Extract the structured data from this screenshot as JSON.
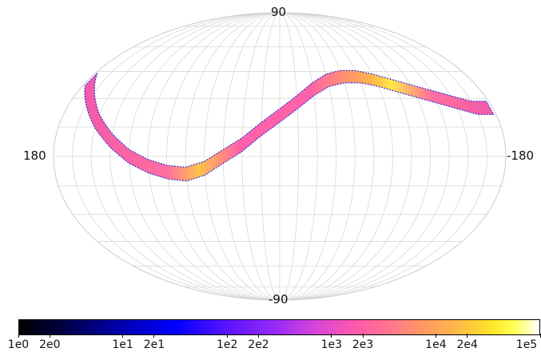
{
  "chart_data": {
    "type": "heatmap",
    "projection": "mollweide",
    "coordinate_labels": {
      "top": "90",
      "bottom": "-90",
      "left": "180",
      "right": "-180"
    },
    "graticule": true,
    "lon_spacing_deg": 15,
    "lat_spacing_deg": 15,
    "band_center_lat_deg": [
      [
        165,
        30
      ],
      [
        150,
        18
      ],
      [
        135,
        8
      ],
      [
        120,
        0
      ],
      [
        105,
        -5
      ],
      [
        90,
        -8
      ],
      [
        75,
        -9
      ],
      [
        60,
        -6
      ],
      [
        45,
        0
      ],
      [
        30,
        6
      ],
      [
        15,
        14
      ],
      [
        0,
        21
      ],
      [
        -15,
        28
      ],
      [
        -30,
        35
      ],
      [
        -45,
        40
      ],
      [
        -60,
        42
      ],
      [
        -75,
        42
      ],
      [
        -90,
        40
      ],
      [
        -105,
        37
      ],
      [
        -120,
        34
      ],
      [
        -135,
        31
      ],
      [
        -150,
        28
      ],
      [
        -165,
        25
      ]
    ],
    "band_halfwidth_deg": 3.5,
    "colormap": "gnuplot2",
    "colorbar": {
      "scale": "log",
      "range": [
        1,
        100000
      ],
      "tick_labels": [
        "1e0",
        "2e0",
        "1e1",
        "2e1",
        "1e2",
        "2e2",
        "1e3",
        "2e3",
        "1e4",
        "2e4",
        "1e5"
      ],
      "tick_values": [
        1,
        2,
        10,
        20,
        100,
        200,
        1000,
        2000,
        10000,
        20000,
        100000
      ]
    }
  }
}
